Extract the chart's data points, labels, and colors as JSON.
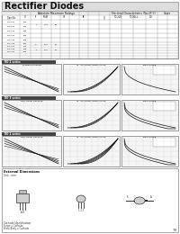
{
  "title": "Rectifier Diodes",
  "background_color": "#ffffff",
  "page_number": "79",
  "title_bg": "#dddddd",
  "table_bg": "#ffffff",
  "graph_bg": "#f0f0f0",
  "section_labels": [
    "RO 2 series",
    "RO 3 series",
    "RO 1 series"
  ],
  "section_label_bg": "#444444",
  "graph_titles_row0": [
    "Forward Derating",
    "IF - VF Characteristic Curve",
    "Base Rating"
  ],
  "graph_titles_row1": [
    "Non-Linear Derating",
    "IF - VF Characteristic Curve",
    "Base Rating"
  ],
  "graph_titles_row2": [
    "Non-Linear Derating",
    "IF - VF Characteristic Curve",
    "Base Rating"
  ],
  "grid_color": "#cccccc",
  "curve_color": "#111111",
  "table_line_color": "#999999"
}
